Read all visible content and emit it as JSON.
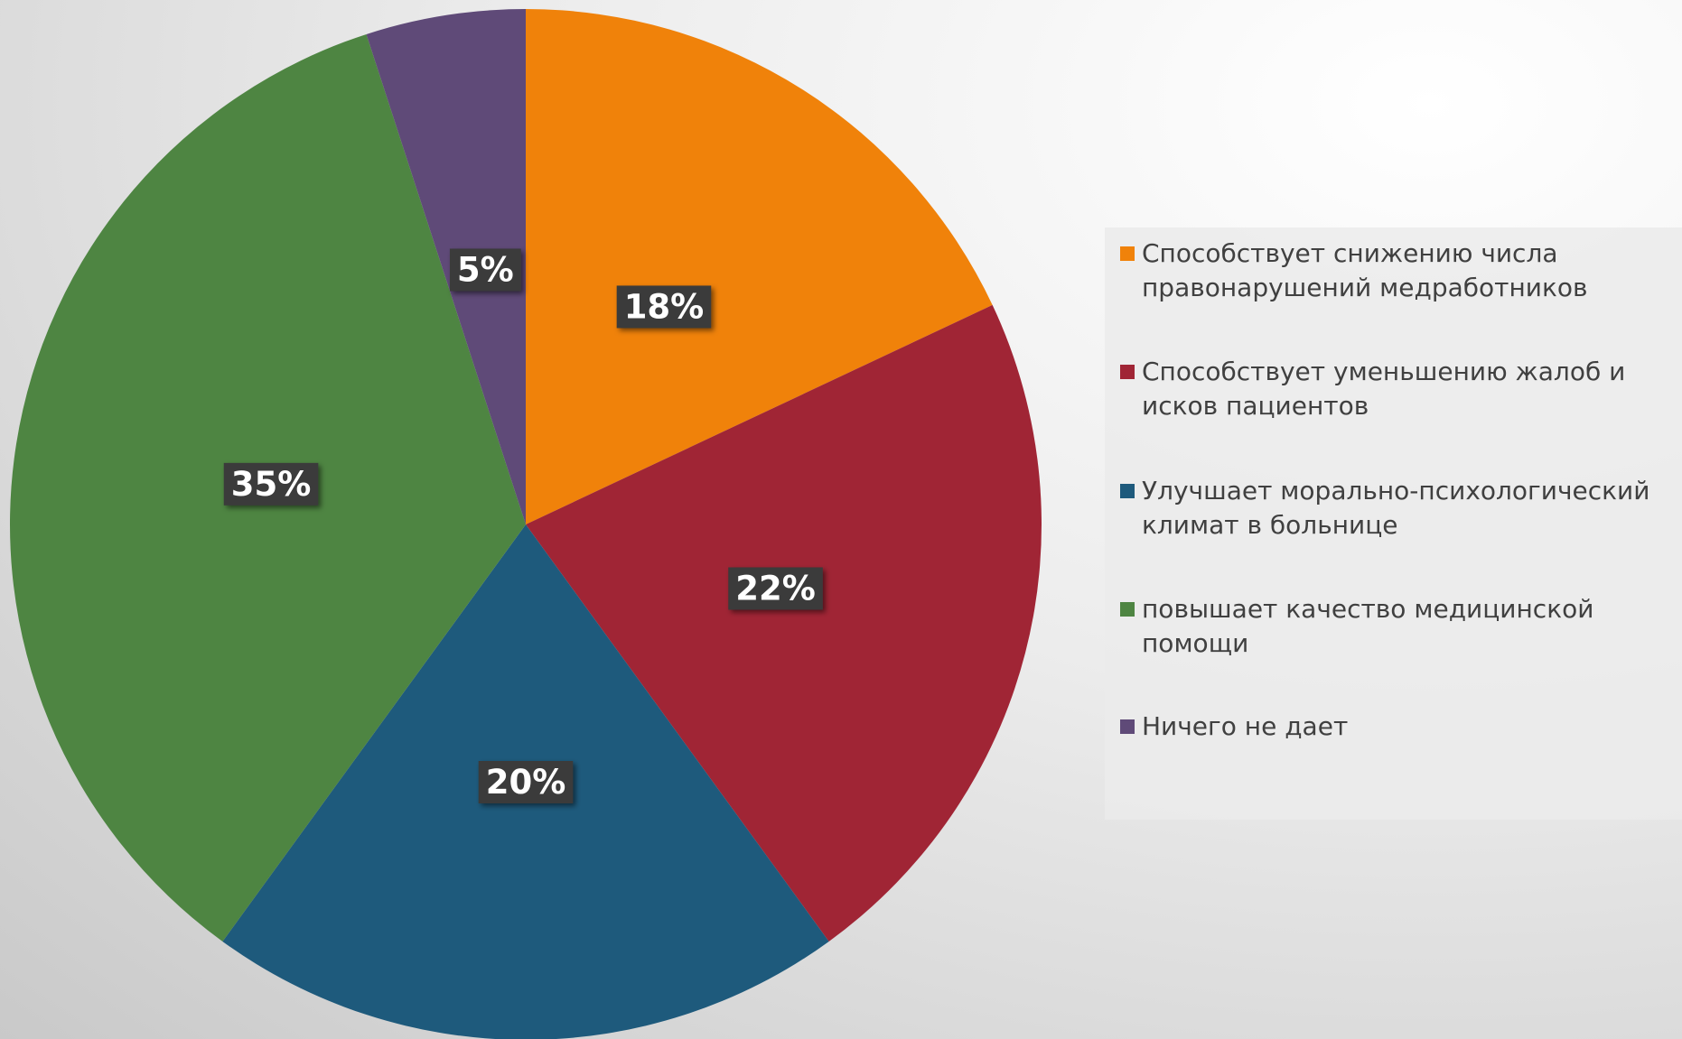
{
  "chart_data": {
    "type": "pie",
    "categories": [
      "Способствует снижению числа правонарушений медработников",
      "Способствует уменьшению жалоб и исков пациентов",
      "Улучшает морально-психологический климат в больнице",
      "повышает качество медицинской помощи",
      "Ничего не дает"
    ],
    "values": [
      18,
      22,
      20,
      35,
      5
    ],
    "value_labels": [
      "18%",
      "22%",
      "20%",
      "35%",
      "5%"
    ],
    "colors": [
      "#f0820a",
      "#a02535",
      "#1e5a7c",
      "#4e8542",
      "#5f4a78"
    ],
    "legend": "right"
  }
}
